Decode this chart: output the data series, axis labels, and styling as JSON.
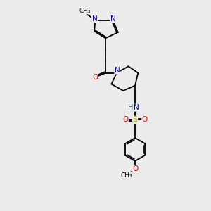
{
  "background_color": "#ebebeb",
  "bond_color": "#000000",
  "atoms": {
    "N_blue": "#0000cc",
    "O_red": "#ff0000",
    "S_yellow": "#b8b800",
    "H_teal": "#008080",
    "C_black": "#000000"
  },
  "figsize": [
    3.0,
    3.0
  ],
  "dpi": 100,
  "xlim": [
    0,
    10
  ],
  "ylim": [
    0,
    14
  ]
}
